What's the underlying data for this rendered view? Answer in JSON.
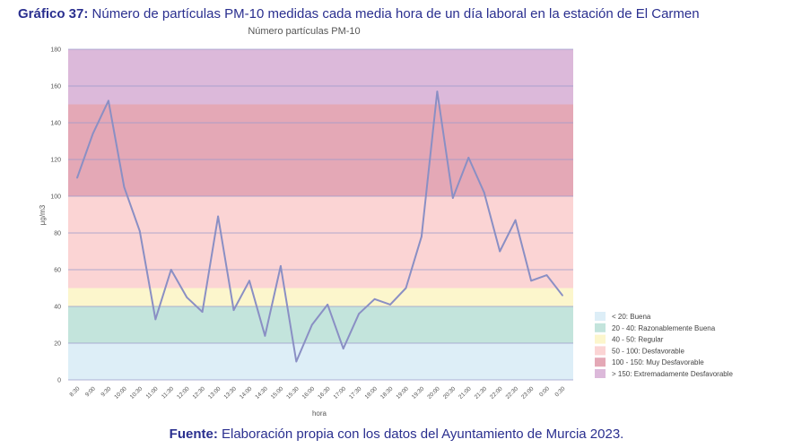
{
  "heading": {
    "label": "Gráfico 37:",
    "text": " Número de partículas PM-10 medidas cada media hora de un día laboral en la estación de El Carmen"
  },
  "footer": {
    "label": "Fuente:",
    "text": " Elaboración propia con los datos del Ayuntamiento de Murcia 2023."
  },
  "chart_data": {
    "type": "line",
    "title": "Número partículas PM-10",
    "xlabel": "hora",
    "ylabel": "µg/m3",
    "ylim": [
      0,
      180
    ],
    "yticks": [
      0,
      20,
      40,
      60,
      80,
      100,
      120,
      140,
      160,
      180
    ],
    "grid": true,
    "legend_position": "bottom-right",
    "line_color": "#8a8fc4",
    "categories": [
      "8:30",
      "9:00",
      "9:30",
      "10:00",
      "10:30",
      "11:00",
      "11:30",
      "12:00",
      "12:30",
      "13:00",
      "13:30",
      "14:00",
      "14:30",
      "15:00",
      "15:30",
      "16:00",
      "16:30",
      "17:00",
      "17:30",
      "18:00",
      "18:30",
      "19:00",
      "19:30",
      "20:00",
      "20:30",
      "21:00",
      "21:30",
      "22:00",
      "22:30",
      "23:00",
      "0:00",
      "0:30"
    ],
    "series": [
      {
        "values": [
          110,
          134,
          152,
          105,
          81,
          33,
          60,
          45,
          37,
          89,
          38,
          54,
          24,
          62,
          10,
          30,
          41,
          17,
          36,
          44,
          41,
          50,
          78,
          157,
          99,
          121,
          102,
          70,
          87,
          54,
          57,
          46
        ]
      }
    ],
    "bands": [
      {
        "from": 0,
        "to": 20,
        "label": "< 20: Buena",
        "color": "#ddeef7"
      },
      {
        "from": 20,
        "to": 40,
        "label": "20 - 40: Razonablemente Buena",
        "color": "#c3e4dc"
      },
      {
        "from": 40,
        "to": 50,
        "label": "40 - 50: Regular",
        "color": "#fcf6cc"
      },
      {
        "from": 50,
        "to": 100,
        "label": "50 - 100: Desfavorable",
        "color": "#fbd4d4"
      },
      {
        "from": 100,
        "to": 150,
        "label": "100 - 150: Muy Desfavorable",
        "color": "#e4a8b6"
      },
      {
        "from": 150,
        "to": 180,
        "label": "> 150: Extremadamente Desfavorable",
        "color": "#dcb9da"
      }
    ]
  }
}
